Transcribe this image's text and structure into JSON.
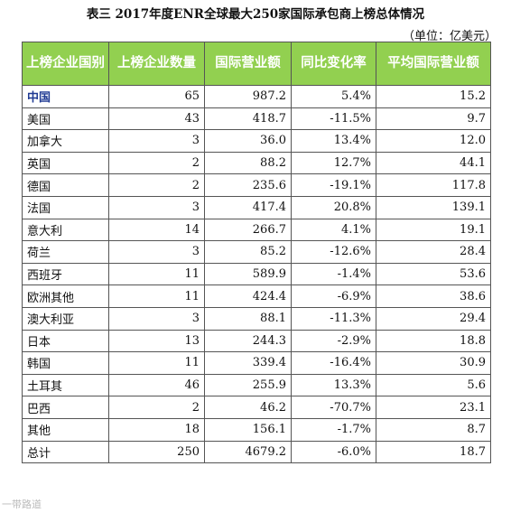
{
  "title": "表三   2017年度ENR全球最大250家国际承包商上榜总体情况",
  "unit": "（单位：亿美元）",
  "table": {
    "headers": [
      "上榜企业国别",
      "上榜企业数量",
      "国际营业额",
      "同比变化率",
      "平均国际营业额"
    ],
    "rows": [
      [
        "中国",
        "65",
        "987.2",
        "5.4%",
        "15.2"
      ],
      [
        "美国",
        "43",
        "418.7",
        "-11.5%",
        "9.7"
      ],
      [
        "加拿大",
        "3",
        "36.0",
        "13.4%",
        "12.0"
      ],
      [
        "英国",
        "2",
        "88.2",
        "12.7%",
        "44.1"
      ],
      [
        "德国",
        "2",
        "235.6",
        "-19.1%",
        "117.8"
      ],
      [
        "法国",
        "3",
        "417.4",
        "20.8%",
        "139.1"
      ],
      [
        "意大利",
        "14",
        "266.7",
        "4.1%",
        "19.1"
      ],
      [
        "荷兰",
        "3",
        "85.2",
        "-12.6%",
        "28.4"
      ],
      [
        "西班牙",
        "11",
        "589.9",
        "-1.4%",
        "53.6"
      ],
      [
        "欧洲其他",
        "11",
        "424.4",
        "-6.9%",
        "38.6"
      ],
      [
        "澳大利亚",
        "3",
        "88.1",
        "-11.3%",
        "29.4"
      ],
      [
        "日本",
        "13",
        "244.3",
        "-2.9%",
        "18.8"
      ],
      [
        "韩国",
        "11",
        "339.4",
        "-16.4%",
        "30.9"
      ],
      [
        "土耳其",
        "46",
        "255.9",
        "13.3%",
        "5.6"
      ],
      [
        "巴西",
        "2",
        "46.2",
        "-70.7%",
        "23.1"
      ],
      [
        "其他",
        "18",
        "156.1",
        "-1.7%",
        "8.7"
      ],
      [
        "总计",
        "250",
        "4679.2",
        "-6.0%",
        "18.7"
      ]
    ]
  },
  "watermark": "一带路道"
}
